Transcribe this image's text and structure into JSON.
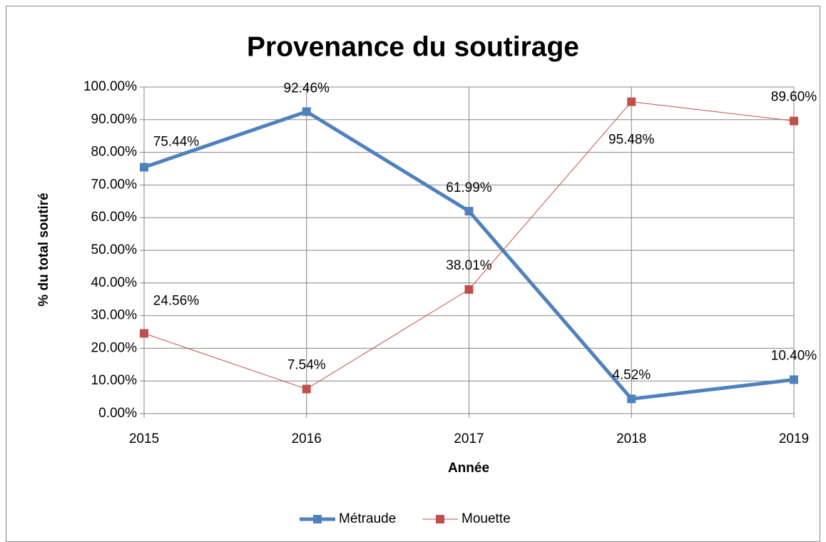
{
  "chart_data": {
    "type": "line",
    "title": "Provenance du soutirage",
    "x_label": "Année",
    "y_label": "% du total soutiré",
    "categories": [
      "2015",
      "2016",
      "2017",
      "2018",
      "2019"
    ],
    "series": [
      {
        "name": "Métraude",
        "color": "#4f81bd",
        "values": [
          75.44,
          92.46,
          61.99,
          4.52,
          10.4
        ],
        "value_labels": [
          "75.44%",
          "92.46%",
          "61.99%",
          "4.52%",
          "10.40%"
        ]
      },
      {
        "name": "Mouette",
        "color": "#c0504d",
        "values": [
          24.56,
          7.54,
          38.01,
          95.48,
          89.6
        ],
        "value_labels": [
          "24.56%",
          "7.54%",
          "38.01%",
          "95.48%",
          "89.60%"
        ]
      }
    ],
    "ylim": [
      0,
      100
    ],
    "yticks": [
      {
        "value": 0,
        "label": "0.00%"
      },
      {
        "value": 10,
        "label": "10.00%"
      },
      {
        "value": 20,
        "label": "20.00%"
      },
      {
        "value": 30,
        "label": "30.00%"
      },
      {
        "value": 40,
        "label": "40.00%"
      },
      {
        "value": 50,
        "label": "50.00%"
      },
      {
        "value": 60,
        "label": "60.00%"
      },
      {
        "value": 70,
        "label": "70.00%"
      },
      {
        "value": 80,
        "label": "80.00%"
      },
      {
        "value": 90,
        "label": "90.00%"
      },
      {
        "value": 100,
        "label": "100.00%"
      }
    ],
    "grid": true,
    "legend": "bottom"
  }
}
